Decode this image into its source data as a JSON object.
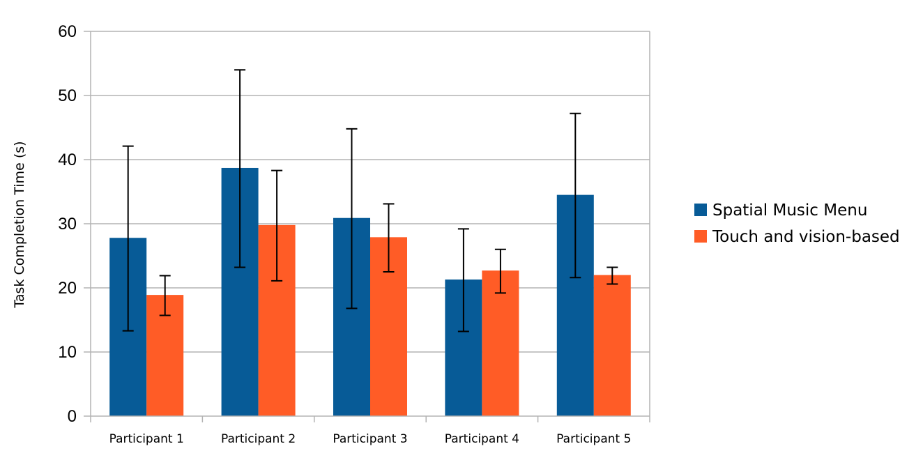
{
  "chart_data": {
    "type": "bar",
    "title": "",
    "xlabel": "",
    "ylabel": "Task Completion Time (s)",
    "ylim": [
      0,
      60
    ],
    "yticks": [
      0,
      10,
      20,
      30,
      40,
      50,
      60
    ],
    "grid": true,
    "legend_position": "right",
    "categories": [
      "Participant 1",
      "Participant 2",
      "Participant 3",
      "Participant 4",
      "Participant 5"
    ],
    "series": [
      {
        "name": "Spatial Music Menu",
        "color": "#075b97",
        "values": [
          27.8,
          38.7,
          30.9,
          21.3,
          34.5
        ],
        "error_low": [
          13.3,
          23.2,
          16.8,
          13.2,
          21.6
        ],
        "error_high": [
          42.1,
          54.0,
          44.8,
          29.2,
          47.2
        ]
      },
      {
        "name": "Touch and vision-based",
        "color": "#ff5c26",
        "values": [
          18.9,
          29.8,
          27.9,
          22.7,
          22.0
        ],
        "error_low": [
          15.7,
          21.1,
          22.5,
          19.2,
          20.6
        ],
        "error_high": [
          21.9,
          38.3,
          33.1,
          26.0,
          23.2
        ]
      }
    ]
  }
}
